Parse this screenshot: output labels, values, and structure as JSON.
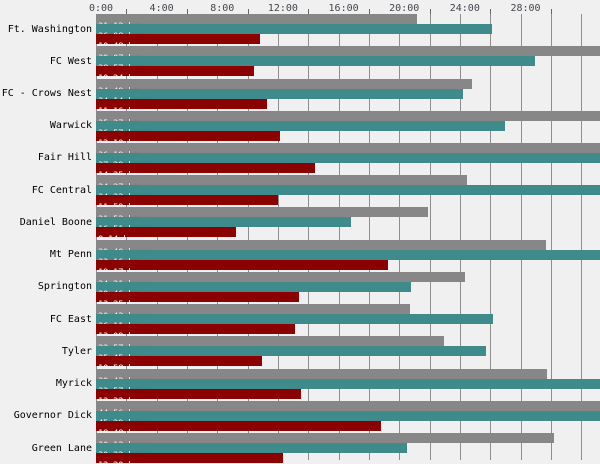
{
  "chart_data": {
    "type": "bar",
    "orientation": "horizontal",
    "value_format": "h:mm (duration)",
    "categories": [
      "Ft. Washington",
      "FC West",
      "FC - Crows Nest",
      "Warwick",
      "Fair Hill",
      "FC Central",
      "Daniel Boone",
      "Mt Penn",
      "Springton",
      "FC East",
      "Tyler",
      "Myrick",
      "Governor Dick",
      "Green Lane"
    ],
    "series": [
      {
        "name": "gray-bar-series",
        "color": "#878787",
        "values": [
          "21:12",
          "39:07",
          "24:49",
          "35:37",
          "36:19",
          "24:27",
          "21:52",
          "29:40",
          "24:21",
          "20:43",
          "22:57",
          "29:43",
          "44:56",
          "30:13"
        ]
      },
      {
        "name": "teal-bar-series",
        "color": "#3f8a8a",
        "values": [
          "26:08",
          "28:57",
          "24:14",
          "26:57",
          "37:29",
          "34:22",
          "16:51",
          "33:16",
          "20:46",
          "26:11",
          "25:45",
          "33:57",
          "45:29",
          "20:32"
        ]
      },
      {
        "name": "dark-red-bar-series",
        "color": "#8b0000",
        "values": [
          "10:48",
          "10:24",
          "11:16",
          "12:10",
          "14:25",
          "11:59",
          "9:14",
          "19:17",
          "13:25",
          "13:09",
          "10:58",
          "13:32",
          "18:48",
          "12:20"
        ]
      }
    ],
    "bar_label_suffix": "<br>ψ",
    "x_axis": {
      "position": "top",
      "tick_labels": [
        "0:00",
        "4:00",
        "8:00",
        "12:00",
        "16:00",
        "20:00",
        "24:00",
        "28:00"
      ],
      "label_interval_hours": 4,
      "grid_interval_hours": 2,
      "min_hours": 0,
      "max_visible_hours": 33.2,
      "grid": true
    },
    "legend": null,
    "colors": {
      "background": "#f0f0f0",
      "gridline": "#8e8e8e",
      "axis_text": "#45454d",
      "category_text": "#000000",
      "bar_label_text": "#ffffff"
    }
  }
}
